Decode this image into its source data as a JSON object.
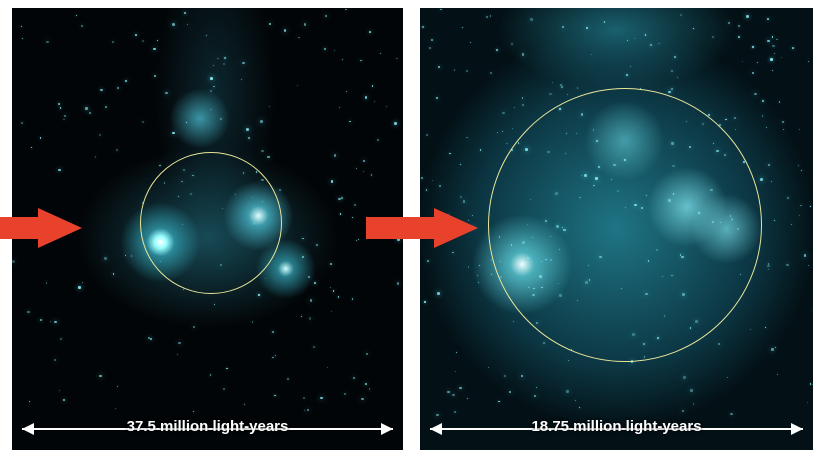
{
  "panels": [
    {
      "scale_label": "37.5 million light-years"
    },
    {
      "scale_label": "18.75 million light-years"
    }
  ],
  "colors": {
    "arrow": "#e8412c",
    "circle": "#e8e59a",
    "glow": "#5fd0e0"
  }
}
